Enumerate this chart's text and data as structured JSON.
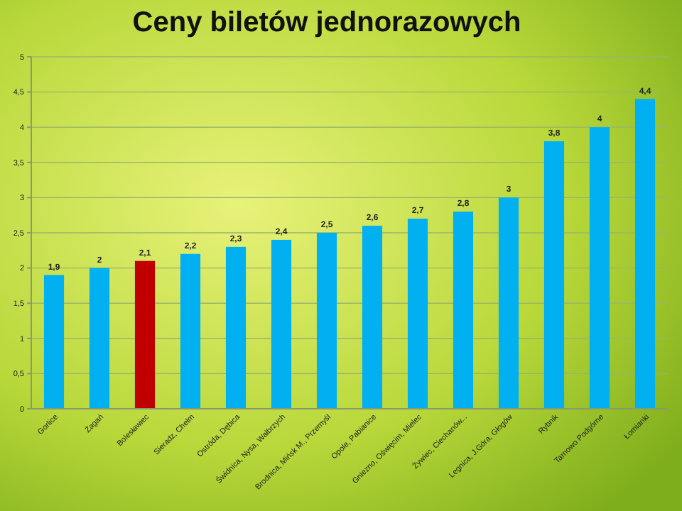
{
  "chart_data": {
    "type": "bar",
    "title": "Ceny biletów jednorazowych",
    "categories": [
      "Gorlice",
      "Żagań",
      "Bolesławiec",
      "Sieradz, Chełm",
      "Ostróda, Dębica",
      "Świdnica, Nysa, Wałbrzych",
      "Brodnica, Mińsk M., Przemyśl",
      "Opole, Pabianice",
      "Gniezno, Oświęcim, Mielec",
      "Żywiec, Ciechanów...",
      "Legnica, J.Góra, Głogów",
      "Rybnik",
      "Tarnowo Podgórne",
      "Łomianki"
    ],
    "values": [
      1.9,
      2,
      2.1,
      2.2,
      2.3,
      2.4,
      2.5,
      2.6,
      2.7,
      2.8,
      3,
      3.8,
      4,
      4.4
    ],
    "colors": [
      "#00b0f0",
      "#00b0f0",
      "#c00000",
      "#00b0f0",
      "#00b0f0",
      "#00b0f0",
      "#00b0f0",
      "#00b0f0",
      "#00b0f0",
      "#00b0f0",
      "#00b0f0",
      "#00b0f0",
      "#00b0f0",
      "#00b0f0"
    ],
    "value_labels": [
      "1,9",
      "2",
      "2,1",
      "2,2",
      "2,3",
      "2,4",
      "2,5",
      "2,6",
      "2,7",
      "2,8",
      "3",
      "3,8",
      "4",
      "4,4"
    ],
    "ylim": [
      0,
      5
    ],
    "yticks": [
      0,
      {
        "value": 0.5,
        "label": "0,5"
      },
      1,
      {
        "value": 1.5,
        "label": "1,5"
      },
      2,
      {
        "value": 2.5,
        "label": "2,5"
      },
      3,
      {
        "value": 3.5,
        "label": "3,5"
      },
      4,
      {
        "value": 4.5,
        "label": "4,5"
      },
      5
    ],
    "grid": "y"
  }
}
